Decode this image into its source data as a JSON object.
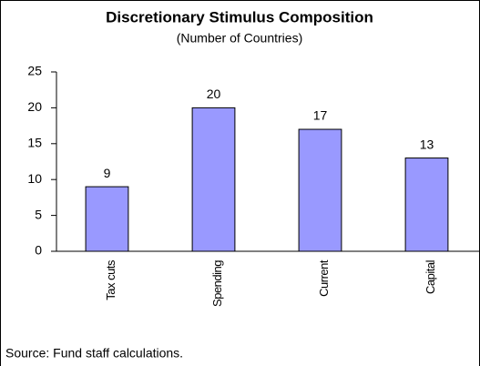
{
  "chart_data": {
    "type": "bar",
    "title": "Discretionary Stimulus Composition",
    "subtitle": "(Number of Countries)",
    "categories": [
      "Tax cuts",
      "Spending",
      "Current",
      "Capital"
    ],
    "values": [
      9,
      20,
      17,
      13
    ],
    "color": "#9999ff",
    "ylim": [
      0,
      25
    ],
    "yticks": [
      0,
      5,
      10,
      15,
      20,
      25
    ],
    "grid": false,
    "note": "Source: Fund staff calculations."
  }
}
